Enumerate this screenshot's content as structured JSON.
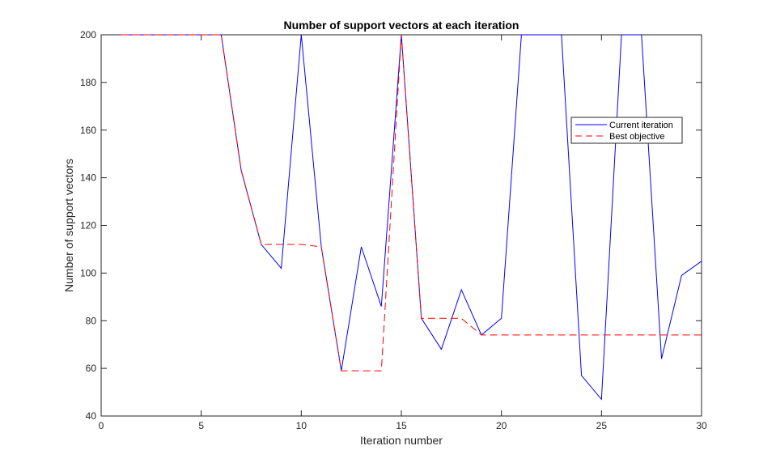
{
  "chart_data": {
    "type": "line",
    "title": "Number of support vectors at each iteration",
    "xlabel": "Iteration number",
    "ylabel": "Number of support vectors",
    "xlim": [
      0,
      30
    ],
    "ylim": [
      40,
      200
    ],
    "xticks": [
      0,
      5,
      10,
      15,
      20,
      25,
      30
    ],
    "yticks": [
      40,
      60,
      80,
      100,
      120,
      140,
      160,
      180,
      200
    ],
    "grid": false,
    "legend_position": "upper-right",
    "x": [
      1,
      2,
      3,
      4,
      5,
      6,
      7,
      8,
      9,
      10,
      11,
      12,
      13,
      14,
      15,
      16,
      17,
      18,
      19,
      20,
      21,
      22,
      23,
      24,
      25,
      26,
      27,
      28,
      29,
      30
    ],
    "series": [
      {
        "name": "Current iteration",
        "color": "#0000ff",
        "style": "solid",
        "values": [
          200,
          200,
          200,
          200,
          200,
          200,
          143,
          112,
          102,
          200,
          111,
          59,
          111,
          86,
          200,
          81,
          68,
          93,
          74,
          81,
          200,
          200,
          200,
          57,
          47,
          200,
          200,
          64,
          99,
          105
        ]
      },
      {
        "name": "Best objective",
        "color": "#ff0000",
        "style": "dashed",
        "values": [
          200,
          200,
          200,
          200,
          200,
          200,
          143,
          112,
          112,
          112,
          111,
          59,
          59,
          59,
          200,
          81,
          81,
          81,
          74,
          74,
          74,
          74,
          74,
          74,
          74,
          74,
          74,
          74,
          74,
          74
        ]
      }
    ]
  }
}
